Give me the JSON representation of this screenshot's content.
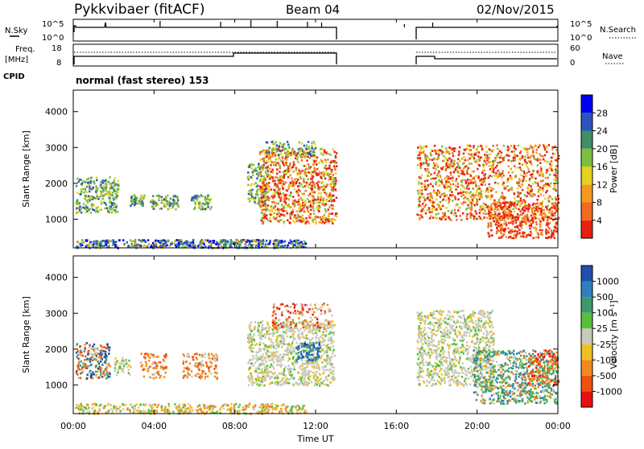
{
  "header": {
    "radar": "Pykkvibaer (fitACF)",
    "beam": "Beam 04",
    "date": "02/Nov/2015"
  },
  "panels": {
    "nsky_label": "N.Sky",
    "nsky_ticks": [
      "10^5",
      "10^0"
    ],
    "nsearch_label": "N.Search",
    "nsearch_ticks": [
      "10^5",
      "10^0"
    ],
    "freq_label_1": "Freq.",
    "freq_label_2": "[MHz]",
    "freq_ticks": [
      "18",
      "8"
    ],
    "nave_label": "Nave",
    "nave_ticks": [
      "60",
      "0"
    ],
    "cpid_label": "CPID",
    "cpid_value": "normal (fast stereo) 153"
  },
  "chart_data": [
    {
      "type": "heatmap",
      "name": "power",
      "ylabel": "Slant Range [km]",
      "yticks": [
        "4000",
        "3000",
        "2000",
        "1000"
      ],
      "ylim": [
        200,
        4600
      ],
      "xlim": [
        0,
        24
      ],
      "cbar_label": "Power [dB]",
      "cbar_ticks": [
        "28",
        "24",
        "20",
        "16",
        "12",
        "8",
        "4"
      ],
      "cbar_colors": [
        "#0000ee",
        "#2a55bb",
        "#3f8f63",
        "#7fbf3f",
        "#e8d020",
        "#f59a20",
        "#f06a20",
        "#e82010"
      ],
      "data_gaps_ut": [
        [
          13.1,
          16.9
        ]
      ]
    },
    {
      "type": "heatmap",
      "name": "velocity",
      "ylabel": "Slant Range [km]",
      "yticks": [
        "4000",
        "3000",
        "2000",
        "1000"
      ],
      "ylim": [
        200,
        4600
      ],
      "xlim": [
        0,
        24
      ],
      "cbar_label": "Velocity [m s⁻¹]",
      "cbar_ticks": [
        "1000",
        "500",
        "100",
        "25",
        "-25",
        "-100",
        "-500",
        "-1000"
      ],
      "cbar_colors": [
        "#1f4fa8",
        "#2f7fbf",
        "#3e9a6e",
        "#58c03a",
        "#c8c8bc",
        "#f0c020",
        "#f08a20",
        "#f05010",
        "#e81010"
      ],
      "data_gaps_ut": [
        [
          13.1,
          16.9
        ]
      ]
    }
  ],
  "xaxis": {
    "ticks": [
      "00:00",
      "04:00",
      "08:00",
      "12:00",
      "16:00",
      "20:00",
      "00:00"
    ],
    "label": "Time UT"
  }
}
